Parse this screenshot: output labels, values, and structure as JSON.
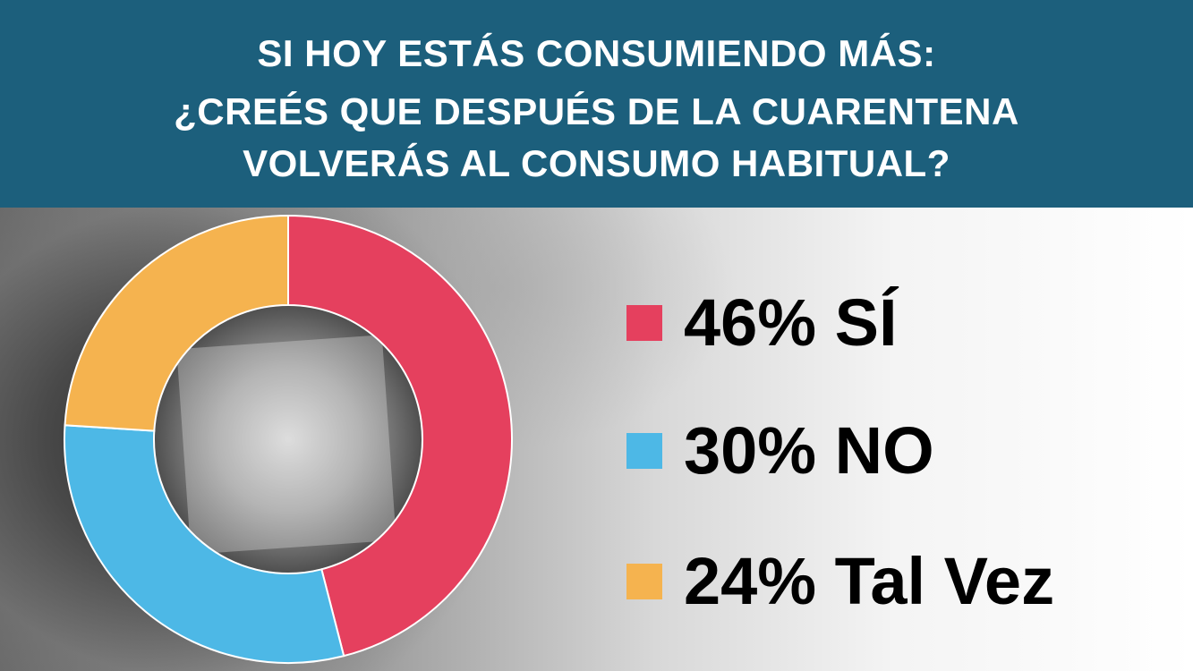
{
  "header": {
    "line1": "SI HOY ESTÁS CONSUMIENDO MÁS:",
    "line2": "¿CREÉS QUE DESPUÉS DE LA CUARENTENA",
    "line3": "VOLVERÁS AL CONSUMO HABITUAL?",
    "background_color": "#1c5f7c"
  },
  "chart_data": {
    "type": "pie",
    "donut": true,
    "slices": [
      {
        "label": "46% SÍ",
        "value": 46,
        "color": "#e5405e"
      },
      {
        "label": "30% NO",
        "value": 30,
        "color": "#4db8e6"
      },
      {
        "label": "24% Tal Vez",
        "value": 24,
        "color": "#f5b34f"
      }
    ],
    "legend_position": "right"
  }
}
